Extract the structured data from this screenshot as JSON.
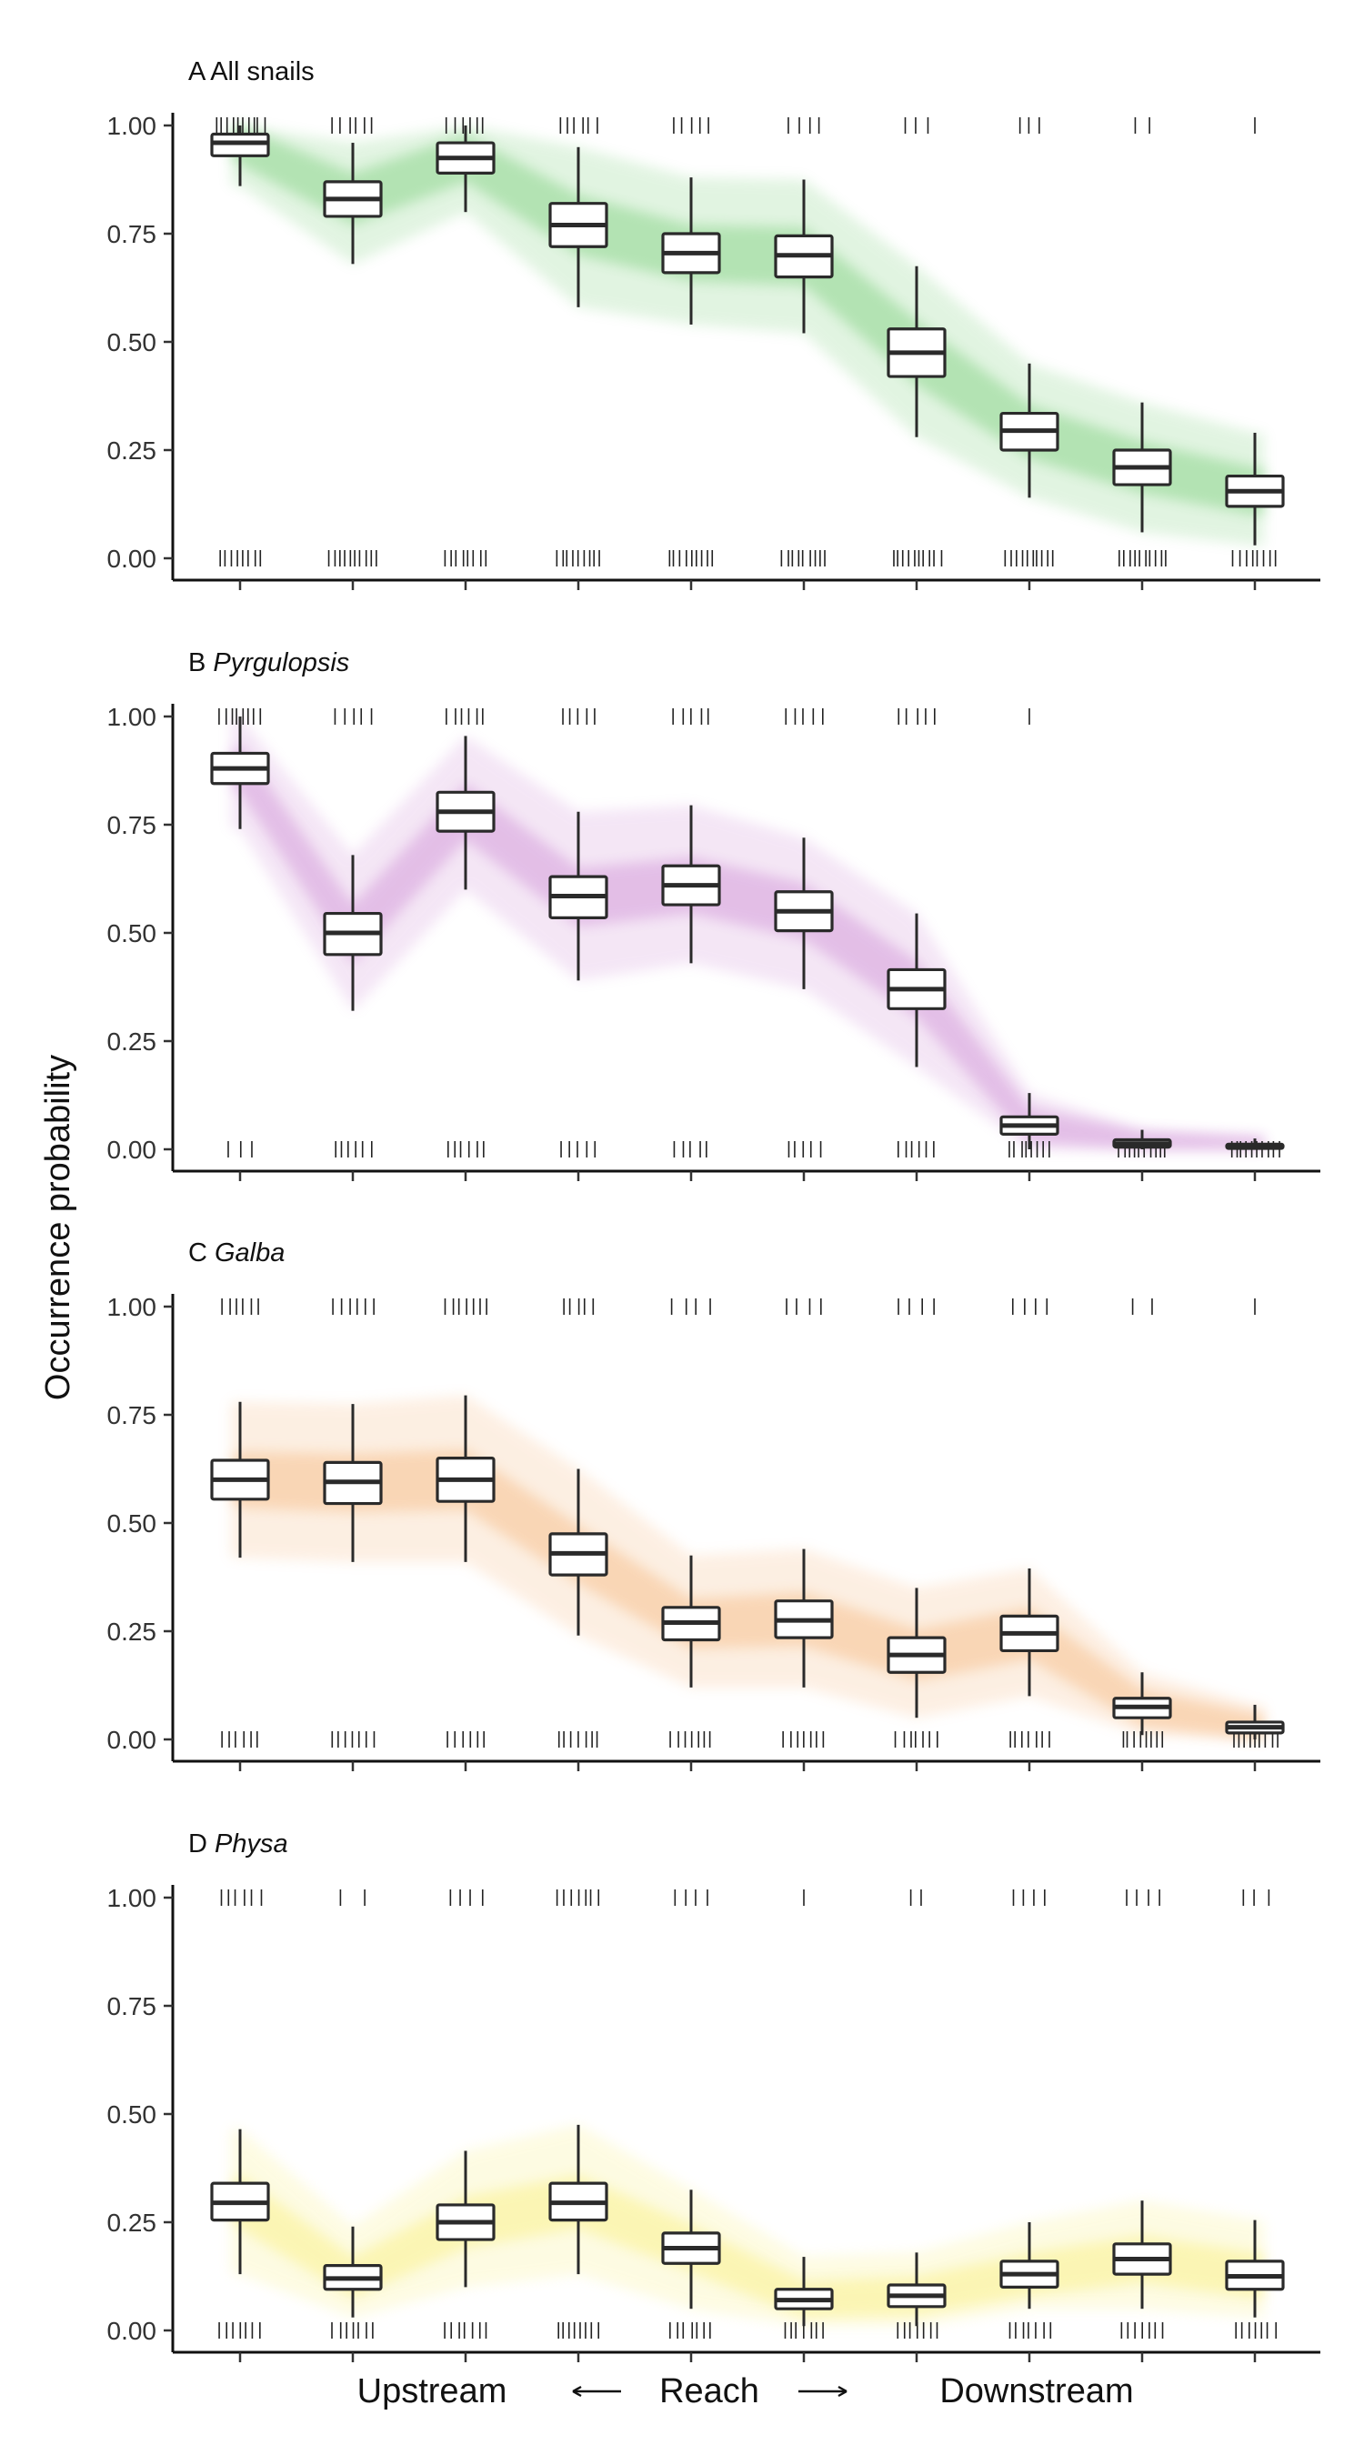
{
  "chart_data": {
    "type": "box",
    "ylabel": "Occurrence probability",
    "xlabel": {
      "left": "Upstream",
      "center": "Reach",
      "right": "Downstream"
    },
    "ylim": [
      0,
      1
    ],
    "yticks": [
      0,
      0.25,
      0.5,
      0.75,
      1
    ],
    "ytick_labels": [
      "0.00",
      "0.25",
      "0.50",
      "0.75",
      "1.00"
    ],
    "n_reaches": 10,
    "grid": false,
    "legend": "none",
    "panels": [
      {
        "letter": "A",
        "name": "All snails",
        "italic": false,
        "color": "#7ccf7c",
        "boxes": [
          {
            "min": 0.86,
            "q1": 0.93,
            "median": 0.96,
            "q3": 0.98,
            "max": 1.0
          },
          {
            "min": 0.68,
            "q1": 0.79,
            "median": 0.83,
            "q3": 0.87,
            "max": 0.96
          },
          {
            "min": 0.8,
            "q1": 0.89,
            "median": 0.925,
            "q3": 0.96,
            "max": 1.0
          },
          {
            "min": 0.58,
            "q1": 0.72,
            "median": 0.77,
            "q3": 0.82,
            "max": 0.95
          },
          {
            "min": 0.54,
            "q1": 0.66,
            "median": 0.705,
            "q3": 0.75,
            "max": 0.88
          },
          {
            "min": 0.52,
            "q1": 0.65,
            "median": 0.7,
            "q3": 0.745,
            "max": 0.875
          },
          {
            "min": 0.28,
            "q1": 0.42,
            "median": 0.475,
            "q3": 0.53,
            "max": 0.675
          },
          {
            "min": 0.14,
            "q1": 0.25,
            "median": 0.295,
            "q3": 0.335,
            "max": 0.45
          },
          {
            "min": 0.06,
            "q1": 0.17,
            "median": 0.21,
            "q3": 0.25,
            "max": 0.36
          },
          {
            "min": 0.03,
            "q1": 0.12,
            "median": 0.155,
            "q3": 0.19,
            "max": 0.29
          }
        ],
        "top_ticks": [
          [
            10,
            26
          ],
          [
            6,
            22
          ],
          [
            6,
            20
          ],
          [
            6,
            20
          ],
          [
            5,
            18
          ],
          [
            4,
            18
          ],
          [
            3,
            12
          ],
          [
            3,
            10
          ],
          [
            2,
            7
          ],
          [
            1,
            4
          ]
        ],
        "bottom_ticks": [
          [
            8,
            22
          ],
          [
            10,
            26
          ],
          [
            8,
            22
          ],
          [
            9,
            24
          ],
          [
            9,
            24
          ],
          [
            9,
            24
          ],
          [
            10,
            26
          ],
          [
            10,
            26
          ],
          [
            10,
            26
          ],
          [
            8,
            24
          ]
        ]
      },
      {
        "letter": "B",
        "name": "Pyrgulopsis",
        "italic": true,
        "color": "#cf8fd6",
        "boxes": [
          {
            "min": 0.74,
            "q1": 0.845,
            "median": 0.88,
            "q3": 0.915,
            "max": 1.0
          },
          {
            "min": 0.32,
            "q1": 0.45,
            "median": 0.5,
            "q3": 0.545,
            "max": 0.68
          },
          {
            "min": 0.6,
            "q1": 0.735,
            "median": 0.78,
            "q3": 0.825,
            "max": 0.955
          },
          {
            "min": 0.39,
            "q1": 0.535,
            "median": 0.585,
            "q3": 0.63,
            "max": 0.78
          },
          {
            "min": 0.43,
            "q1": 0.565,
            "median": 0.61,
            "q3": 0.655,
            "max": 0.795
          },
          {
            "min": 0.37,
            "q1": 0.505,
            "median": 0.55,
            "q3": 0.595,
            "max": 0.72
          },
          {
            "min": 0.19,
            "q1": 0.325,
            "median": 0.37,
            "q3": 0.415,
            "max": 0.545
          },
          {
            "min": 0.0,
            "q1": 0.035,
            "median": 0.055,
            "q3": 0.075,
            "max": 0.13
          },
          {
            "min": 0.0,
            "q1": 0.005,
            "median": 0.013,
            "q3": 0.022,
            "max": 0.045
          },
          {
            "min": 0.0,
            "q1": 0.002,
            "median": 0.006,
            "q3": 0.012,
            "max": 0.025
          }
        ],
        "top_ticks": [
          [
            8,
            22
          ],
          [
            5,
            20
          ],
          [
            6,
            20
          ],
          [
            5,
            18
          ],
          [
            5,
            20
          ],
          [
            5,
            20
          ],
          [
            5,
            20
          ],
          [
            1,
            1
          ],
          [
            0,
            0
          ],
          [
            0,
            0
          ]
        ],
        "bottom_ticks": [
          [
            3,
            14
          ],
          [
            6,
            20
          ],
          [
            6,
            20
          ],
          [
            5,
            18
          ],
          [
            5,
            18
          ],
          [
            5,
            18
          ],
          [
            6,
            20
          ],
          [
            8,
            22
          ],
          [
            10,
            26
          ],
          [
            10,
            26
          ]
        ]
      },
      {
        "letter": "C",
        "name": "Galba",
        "italic": true,
        "color": "#f6b880",
        "boxes": [
          {
            "min": 0.42,
            "q1": 0.555,
            "median": 0.6,
            "q3": 0.645,
            "max": 0.78
          },
          {
            "min": 0.41,
            "q1": 0.545,
            "median": 0.595,
            "q3": 0.64,
            "max": 0.775
          },
          {
            "min": 0.41,
            "q1": 0.55,
            "median": 0.6,
            "q3": 0.65,
            "max": 0.795
          },
          {
            "min": 0.24,
            "q1": 0.38,
            "median": 0.43,
            "q3": 0.475,
            "max": 0.625
          },
          {
            "min": 0.12,
            "q1": 0.23,
            "median": 0.27,
            "q3": 0.305,
            "max": 0.425
          },
          {
            "min": 0.12,
            "q1": 0.235,
            "median": 0.275,
            "q3": 0.32,
            "max": 0.44
          },
          {
            "min": 0.05,
            "q1": 0.155,
            "median": 0.195,
            "q3": 0.235,
            "max": 0.35
          },
          {
            "min": 0.1,
            "q1": 0.205,
            "median": 0.245,
            "q3": 0.285,
            "max": 0.395
          },
          {
            "min": 0.01,
            "q1": 0.05,
            "median": 0.075,
            "q3": 0.095,
            "max": 0.155
          },
          {
            "min": 0.0,
            "q1": 0.015,
            "median": 0.028,
            "q3": 0.04,
            "max": 0.08
          }
        ],
        "top_ticks": [
          [
            6,
            20
          ],
          [
            6,
            22
          ],
          [
            7,
            22
          ],
          [
            5,
            16
          ],
          [
            4,
            20
          ],
          [
            4,
            20
          ],
          [
            4,
            20
          ],
          [
            4,
            18
          ],
          [
            2,
            10
          ],
          [
            1,
            1
          ]
        ],
        "bottom_ticks": [
          [
            6,
            20
          ],
          [
            7,
            22
          ],
          [
            6,
            20
          ],
          [
            7,
            22
          ],
          [
            7,
            22
          ],
          [
            7,
            22
          ],
          [
            7,
            22
          ],
          [
            7,
            22
          ],
          [
            8,
            22
          ],
          [
            9,
            24
          ]
        ]
      },
      {
        "letter": "D",
        "name": "Physa",
        "italic": true,
        "color": "#f9ef7e",
        "boxes": [
          {
            "min": 0.13,
            "q1": 0.255,
            "median": 0.295,
            "q3": 0.34,
            "max": 0.465
          },
          {
            "min": 0.03,
            "q1": 0.095,
            "median": 0.12,
            "q3": 0.15,
            "max": 0.24
          },
          {
            "min": 0.1,
            "q1": 0.21,
            "median": 0.25,
            "q3": 0.29,
            "max": 0.415
          },
          {
            "min": 0.13,
            "q1": 0.255,
            "median": 0.295,
            "q3": 0.34,
            "max": 0.475
          },
          {
            "min": 0.05,
            "q1": 0.155,
            "median": 0.19,
            "q3": 0.225,
            "max": 0.325
          },
          {
            "min": 0.01,
            "q1": 0.05,
            "median": 0.07,
            "q3": 0.095,
            "max": 0.17
          },
          {
            "min": 0.01,
            "q1": 0.055,
            "median": 0.08,
            "q3": 0.105,
            "max": 0.18
          },
          {
            "min": 0.05,
            "q1": 0.1,
            "median": 0.13,
            "q3": 0.16,
            "max": 0.25
          },
          {
            "min": 0.05,
            "q1": 0.13,
            "median": 0.165,
            "q3": 0.2,
            "max": 0.3
          },
          {
            "min": 0.03,
            "q1": 0.095,
            "median": 0.125,
            "q3": 0.16,
            "max": 0.255
          }
        ],
        "top_ticks": [
          [
            6,
            22
          ],
          [
            2,
            14
          ],
          [
            4,
            18
          ],
          [
            7,
            22
          ],
          [
            4,
            18
          ],
          [
            1,
            1
          ],
          [
            2,
            6
          ],
          [
            4,
            18
          ],
          [
            4,
            18
          ],
          [
            3,
            14
          ]
        ],
        "bottom_ticks": [
          [
            7,
            22
          ],
          [
            7,
            22
          ],
          [
            7,
            22
          ],
          [
            8,
            22
          ],
          [
            7,
            22
          ],
          [
            7,
            22
          ],
          [
            7,
            22
          ],
          [
            7,
            22
          ],
          [
            7,
            22
          ],
          [
            7,
            22
          ]
        ]
      }
    ]
  }
}
